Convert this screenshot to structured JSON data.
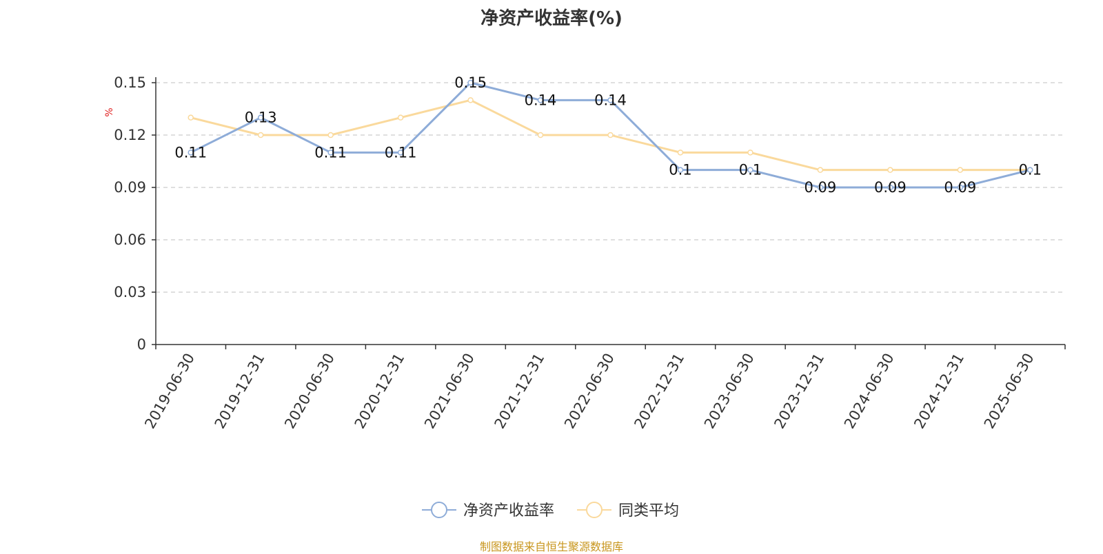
{
  "title": "净资产收益率(%)",
  "footer": {
    "text": "制图数据来自恒生聚源数据库",
    "color": "#C8961E"
  },
  "chart_data": {
    "type": "line",
    "title": "净资产收益率(%)",
    "ylabel": "%",
    "ylim": [
      0,
      0.15
    ],
    "yticks": [
      "0",
      "0.03",
      "0.06",
      "0.09",
      "0.12",
      "0.15"
    ],
    "grid": true,
    "legend_position": "bottom-center",
    "categories": [
      "2019-06-30",
      "2019-12-31",
      "2020-06-30",
      "2020-12-31",
      "2021-06-30",
      "2021-12-31",
      "2022-06-30",
      "2022-12-31",
      "2023-06-30",
      "2023-12-31",
      "2024-06-30",
      "2024-12-31",
      "2025-06-30"
    ],
    "series": [
      {
        "name": "净资产收益率",
        "color": "#8EACD8",
        "values": [
          0.11,
          0.13,
          0.11,
          0.11,
          0.15,
          0.14,
          0.14,
          0.1,
          0.1,
          0.09,
          0.09,
          0.09,
          0.1
        ],
        "labels": [
          "0.11",
          "0.13",
          "0.11",
          "0.11",
          "0.15",
          "0.14",
          "0.14",
          "0.1",
          "0.1",
          "0.09",
          "0.09",
          "0.09",
          "0.1"
        ]
      },
      {
        "name": "同类平均",
        "color": "#FAD99C",
        "values": [
          0.13,
          0.12,
          0.12,
          0.13,
          0.14,
          0.12,
          0.12,
          0.11,
          0.11,
          0.1,
          0.1,
          0.1,
          0.1
        ]
      }
    ]
  }
}
